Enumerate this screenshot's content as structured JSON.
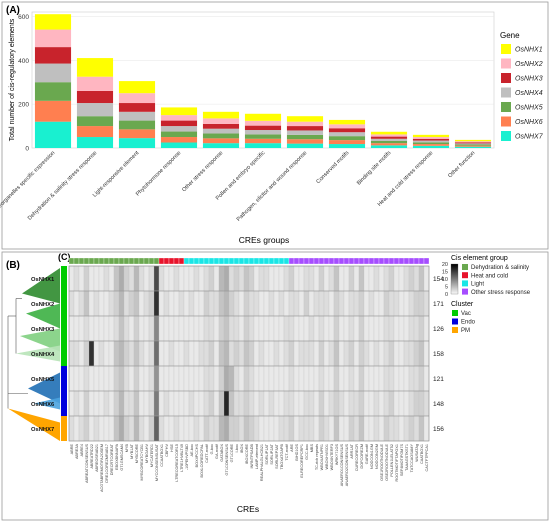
{
  "panels": {
    "a": "(A)",
    "b": "(B)",
    "c": "(C)"
  },
  "colors": {
    "OsNHX1": "#ffff00",
    "OsNHX2": "#ffb6c1",
    "OsNHX3": "#c8232c",
    "OsNHX4": "#bfbfbf",
    "OsNHX5": "#6aa84f",
    "OsNHX6": "#ff7f50",
    "OsNHX7": "#19f0d0",
    "dehydration_salinity": "#6aa84f",
    "heat_cold": "#e8132b",
    "light": "#19e6e6",
    "other_stress": "#a64dff",
    "cluster_vac": "#00cc00",
    "cluster_endo": "#0000dd",
    "cluster_pm": "#ffa500"
  },
  "chart_data": [
    {
      "type": "bar",
      "stacked": true,
      "title": "",
      "xlabel": "CREs groups",
      "ylabel": "Total number of cis-regulatory elements",
      "ylim": [
        0,
        620
      ],
      "yticks": [
        0,
        200,
        400,
        600
      ],
      "grid": true,
      "legend": {
        "title": "Gene",
        "position": "right"
      },
      "categories": [
        "Tissue/organelles specific expression",
        "Dehydration & salinity stress response",
        "Light-responsive element",
        "Phytohormone response",
        "Other stress response",
        "Pollen and embryo specific",
        "Pathogen, elicitor and wound response",
        "Conserved motifs",
        "Binding site motifs",
        "Heat and cold stress response",
        "Other function"
      ],
      "series": [
        {
          "name": "OsNHX7",
          "values": [
            120,
            50,
            45,
            25,
            22,
            22,
            20,
            18,
            12,
            10,
            6
          ]
        },
        {
          "name": "OsNHX6",
          "values": [
            95,
            50,
            40,
            25,
            22,
            20,
            20,
            18,
            10,
            8,
            5
          ]
        },
        {
          "name": "OsNHX5",
          "values": [
            85,
            45,
            40,
            25,
            22,
            20,
            20,
            18,
            10,
            8,
            5
          ]
        },
        {
          "name": "OsNHX4",
          "values": [
            85,
            60,
            40,
            25,
            22,
            20,
            20,
            18,
            10,
            8,
            5
          ]
        },
        {
          "name": "OsNHX3",
          "values": [
            75,
            55,
            40,
            25,
            22,
            20,
            20,
            18,
            10,
            8,
            5
          ]
        },
        {
          "name": "OsNHX2",
          "values": [
            80,
            65,
            45,
            25,
            25,
            22,
            20,
            18,
            10,
            8,
            5
          ]
        },
        {
          "name": "OsNHX1",
          "values": [
            70,
            85,
            55,
            35,
            30,
            32,
            25,
            20,
            12,
            10,
            6
          ]
        }
      ]
    },
    {
      "type": "heatmap",
      "xlabel": "CREs",
      "rows": [
        "OsNHX1",
        "OsNHX2",
        "OsNHX3",
        "OsNHX4",
        "OsNHX5",
        "OsNHX6",
        "OsNHX7"
      ],
      "row_totals": [
        154,
        171,
        126,
        158,
        121,
        148,
        156
      ],
      "row_clusters": [
        "Vac",
        "Vac",
        "Vac",
        "Vac",
        "Endo",
        "Endo",
        "PM"
      ],
      "columns": [
        "ABRE",
        "ABRE3A",
        "ABRE4",
        "ABREATCONSENSUS",
        "ABREATRD22",
        "ABREOSRAB21",
        "ACGTABREMOTIFA2OSEM",
        "DRE1COREZMRAB17",
        "DRECRTCOREAT",
        "EBOXBNNAPA",
        "GT1GMSCAM4",
        "MYB",
        "MYB1AT",
        "MYBCORE",
        "MYBCOREATCYCB1",
        "MYBGAHV",
        "MYCATERD1",
        "MYCCONSENSUSAT",
        "CCAATBOX1",
        "CBFHV",
        "HSE",
        "LTRECOREATCOR15",
        "LTRE1HVBLT49",
        "-10PEHVPSBD",
        "AE-box",
        "BOXIIPCCHS",
        "BOXLCOREDCPAL",
        "CATT-motif",
        "G-box",
        "GA-motif",
        "GATABOX",
        "GT1CONSENSUS",
        "GT1CORE",
        "I-box",
        "IBOX",
        "IBOXCORE",
        "INRNTPSADB",
        "LAMP-element",
        "REALPHALGLHCB21",
        "SORLIP1AT",
        "SORLIP2AT",
        "SORLREP3AT",
        "TBOXATGAPB",
        "TCT-motif",
        "ARE",
        "BIHD1OS",
        "ELRECOREPCRP1",
        "GCC-box",
        "MBS",
        "TC-rich repeats",
        "WBOXATNPR1",
        "WBOXHVISO1",
        "WBOXNTERF3",
        "WRKY71OS",
        "ANAERO1CONSENSUS",
        "ANAERO2CONSENSUS",
        "ARR1AT",
        "CURECORECR",
        "DOFCOREZM",
        "GARE-motif",
        "NODCON1GM",
        "NODCON2GM",
        "OSE1ROOTNODULE",
        "OSE2ROOTNODULE",
        "POLLEN1LELAT52",
        "ROOTMOTIFTAPOX1",
        "SEF4MOTIFGM7S",
        "TAAAGSTKST1",
        "TATCCAOSAMY",
        "WUSATAg",
        "CAATBOX1",
        "CACTFTPPCA1"
      ],
      "column_groups": [
        {
          "name": "Dehydration & salinity",
          "count": 18
        },
        {
          "name": "Heat and cold",
          "count": 5
        },
        {
          "name": "Light",
          "count": 21
        },
        {
          "name": "Other stress response",
          "count": 28
        }
      ],
      "colorbar": {
        "title": "Cis element group",
        "ticks": [
          0,
          5,
          10,
          15,
          20
        ],
        "range": [
          0,
          20
        ]
      },
      "values": [
        [
          1,
          2,
          1,
          3,
          1,
          1,
          1,
          2,
          1,
          4,
          6,
          3,
          2,
          5,
          2,
          1,
          2,
          14,
          2,
          1,
          1,
          2,
          1,
          1,
          1,
          2,
          1,
          2,
          3,
          1,
          5,
          6,
          2,
          3,
          2,
          4,
          3,
          1,
          2,
          2,
          1,
          1,
          1,
          2,
          3,
          1,
          1,
          2,
          2,
          1,
          3,
          1,
          2,
          4,
          1,
          1,
          3,
          1,
          4,
          1,
          1,
          2,
          1,
          2,
          3,
          1,
          1,
          2,
          3,
          2,
          4,
          1
        ],
        [
          2,
          1,
          2,
          4,
          1,
          2,
          1,
          1,
          2,
          3,
          5,
          2,
          3,
          4,
          1,
          2,
          3,
          16,
          1,
          2,
          1,
          1,
          2,
          1,
          2,
          1,
          1,
          3,
          2,
          2,
          4,
          5,
          3,
          2,
          1,
          3,
          2,
          2,
          1,
          1,
          2,
          1,
          2,
          1,
          2,
          2,
          1,
          3,
          1,
          2,
          2,
          2,
          1,
          3,
          2,
          1,
          2,
          2,
          3,
          1,
          2,
          1,
          1,
          3,
          2,
          2,
          1,
          1,
          2,
          3,
          3,
          2
        ],
        [
          1,
          1,
          1,
          2,
          1,
          1,
          1,
          1,
          1,
          2,
          4,
          2,
          1,
          3,
          1,
          1,
          2,
          9,
          1,
          1,
          1,
          1,
          1,
          1,
          1,
          1,
          1,
          2,
          2,
          1,
          3,
          4,
          2,
          2,
          1,
          3,
          2,
          1,
          1,
          1,
          1,
          1,
          1,
          2,
          2,
          1,
          1,
          1,
          2,
          1,
          2,
          1,
          1,
          3,
          1,
          1,
          2,
          1,
          3,
          1,
          1,
          1,
          1,
          2,
          2,
          1,
          1,
          1,
          2,
          2,
          3,
          1
        ],
        [
          2,
          2,
          1,
          3,
          16,
          1,
          2,
          1,
          1,
          4,
          5,
          3,
          2,
          4,
          2,
          1,
          2,
          11,
          1,
          1,
          2,
          1,
          1,
          2,
          1,
          1,
          2,
          2,
          3,
          1,
          4,
          5,
          2,
          3,
          2,
          4,
          3,
          1,
          2,
          1,
          1,
          2,
          1,
          2,
          3,
          1,
          2,
          2,
          2,
          1,
          3,
          1,
          2,
          4,
          1,
          2,
          3,
          1,
          3,
          2,
          1,
          2,
          1,
          2,
          3,
          1,
          1,
          2,
          2,
          3,
          4,
          1
        ],
        [
          1,
          1,
          1,
          2,
          1,
          1,
          1,
          1,
          1,
          3,
          4,
          2,
          1,
          3,
          1,
          1,
          2,
          8,
          1,
          1,
          1,
          1,
          1,
          1,
          1,
          1,
          1,
          2,
          2,
          1,
          3,
          6,
          5,
          2,
          1,
          3,
          2,
          1,
          1,
          1,
          1,
          1,
          1,
          1,
          2,
          1,
          1,
          1,
          1,
          1,
          2,
          1,
          1,
          3,
          1,
          1,
          2,
          1,
          3,
          1,
          1,
          1,
          1,
          2,
          2,
          1,
          1,
          1,
          2,
          2,
          3,
          1
        ],
        [
          1,
          2,
          1,
          3,
          1,
          1,
          1,
          2,
          1,
          3,
          5,
          2,
          2,
          4,
          1,
          1,
          2,
          10,
          1,
          2,
          1,
          1,
          1,
          1,
          2,
          1,
          1,
          2,
          3,
          1,
          4,
          17,
          4,
          2,
          2,
          3,
          2,
          1,
          2,
          1,
          2,
          1,
          1,
          2,
          2,
          1,
          1,
          2,
          2,
          1,
          3,
          1,
          2,
          3,
          2,
          1,
          2,
          2,
          3,
          1,
          1,
          2,
          1,
          2,
          3,
          1,
          1,
          1,
          2,
          3,
          3,
          2
        ],
        [
          2,
          1,
          2,
          3,
          1,
          2,
          1,
          1,
          1,
          4,
          6,
          3,
          2,
          5,
          2,
          1,
          3,
          12,
          2,
          1,
          1,
          2,
          1,
          1,
          1,
          2,
          1,
          3,
          2,
          2,
          5,
          6,
          3,
          3,
          2,
          4,
          3,
          2,
          1,
          1,
          1,
          1,
          2,
          2,
          3,
          1,
          2,
          2,
          2,
          1,
          3,
          2,
          1,
          4,
          1,
          1,
          3,
          2,
          4,
          1,
          1,
          2,
          1,
          3,
          2,
          2,
          1,
          2,
          3,
          2,
          4,
          1
        ]
      ]
    }
  ],
  "dendrogram_labels": [
    "OsNHX1",
    "OsNHX2",
    "OsNHX3",
    "OsNHX4",
    "OsNHX5",
    "OsNHX6",
    "OsNHX7"
  ],
  "legend_c": {
    "group_title": "Cis element group",
    "groups": [
      "Dehydration & salinity",
      "Heat and cold",
      "Light",
      "Other stress response"
    ],
    "cluster_title": "Cluster",
    "clusters": [
      "Vac",
      "Endo",
      "PM"
    ]
  }
}
